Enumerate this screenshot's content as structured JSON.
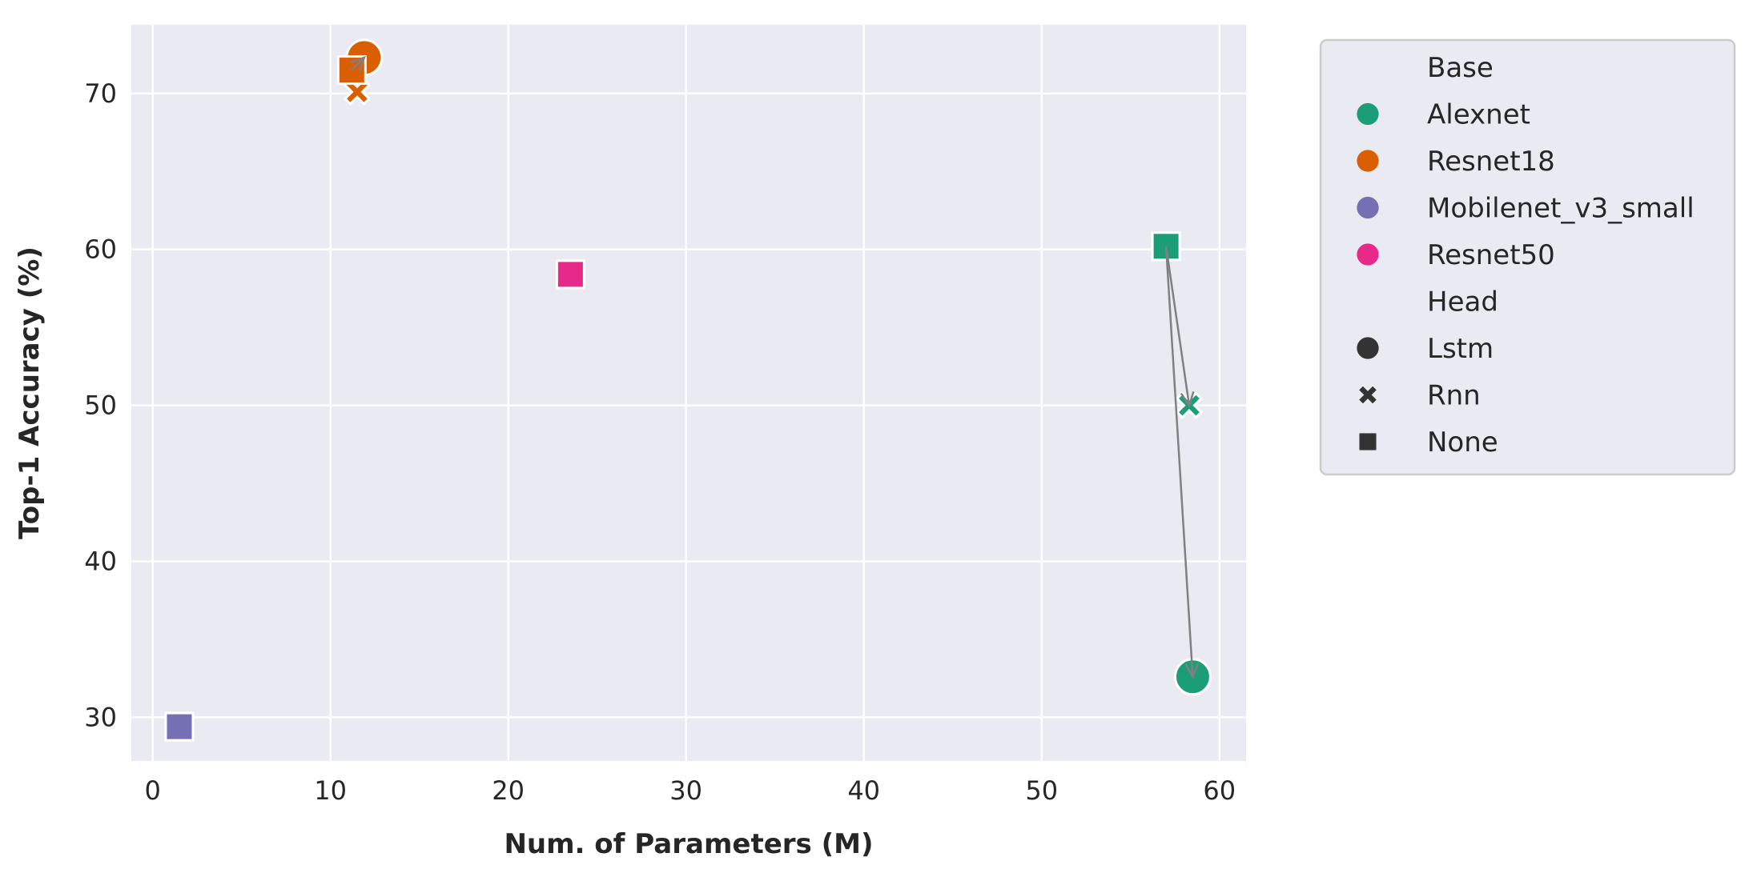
{
  "chart_data": {
    "type": "scatter",
    "title": "",
    "xlabel": "Num. of Parameters (M)",
    "ylabel": "Top-1 Accuracy (%)",
    "xlim": [
      -1.2,
      61.5
    ],
    "ylim": [
      27.2,
      74.4
    ],
    "xticks": [
      0,
      10,
      20,
      30,
      40,
      50,
      60
    ],
    "yticks": [
      30,
      40,
      50,
      60,
      70
    ],
    "grid": true,
    "background_color": "#eaeaf2",
    "legend_position": "outside-right",
    "legend": {
      "base_title": "Base",
      "head_title": "Head",
      "bases": [
        {
          "name": "Alexnet",
          "color": "#1b9e77"
        },
        {
          "name": "Resnet18",
          "color": "#d95f02"
        },
        {
          "name": "Mobilenet_v3_small",
          "color": "#7570b3"
        },
        {
          "name": "Resnet50",
          "color": "#e7298a"
        }
      ],
      "heads": [
        {
          "name": "Lstm",
          "marker": "circle"
        },
        {
          "name": "Rnn",
          "marker": "x"
        },
        {
          "name": "None",
          "marker": "square"
        }
      ]
    },
    "points": [
      {
        "base": "Alexnet",
        "head": "None",
        "x": 57.0,
        "y": 60.2
      },
      {
        "base": "Alexnet",
        "head": "Rnn",
        "x": 58.3,
        "y": 50.0
      },
      {
        "base": "Alexnet",
        "head": "Lstm",
        "x": 58.5,
        "y": 32.6
      },
      {
        "base": "Resnet18",
        "head": "Lstm",
        "x": 11.9,
        "y": 72.3
      },
      {
        "base": "Resnet18",
        "head": "Rnn",
        "x": 11.5,
        "y": 70.1
      },
      {
        "base": "Resnet18",
        "head": "None",
        "x": 11.2,
        "y": 71.5
      },
      {
        "base": "Mobilenet_v3_small",
        "head": "None",
        "x": 1.5,
        "y": 29.4
      },
      {
        "base": "Resnet50",
        "head": "None",
        "x": 23.5,
        "y": 58.4
      }
    ],
    "arrows": [
      {
        "from": [
          57.0,
          60.2
        ],
        "to": [
          58.3,
          50.0
        ]
      },
      {
        "from": [
          57.0,
          60.2
        ],
        "to": [
          58.5,
          32.6
        ]
      },
      {
        "from": [
          11.2,
          71.5
        ],
        "to": [
          11.9,
          72.3
        ]
      }
    ],
    "arrow_color": "#808080"
  }
}
